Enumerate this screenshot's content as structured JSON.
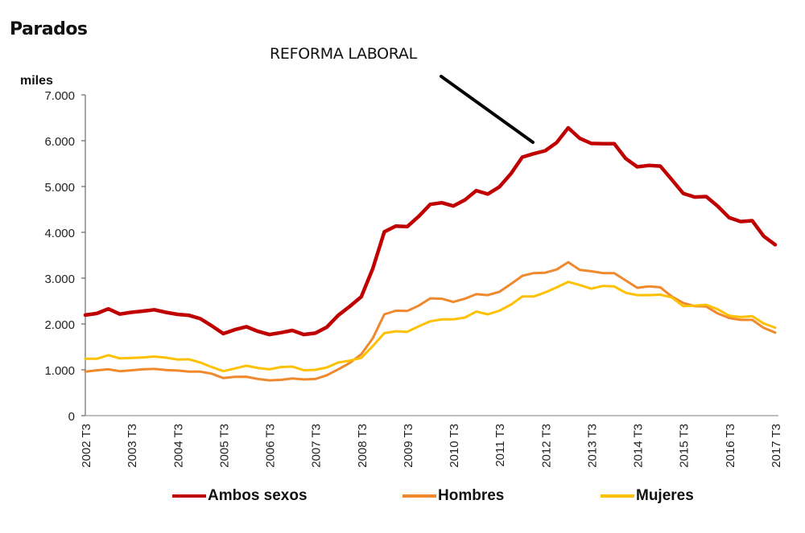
{
  "chart_data": {
    "type": "line",
    "title": "Parados",
    "ylabel": "miles",
    "xlabel": "",
    "ylim": [
      0,
      7000
    ],
    "yticks": [
      0,
      1000,
      2000,
      3000,
      4000,
      5000,
      6000,
      7000
    ],
    "ytick_labels": [
      "0",
      "1.000",
      "2.000",
      "3.000",
      "4.000",
      "5.000",
      "6.000",
      "7.000"
    ],
    "xtick_labels": [
      "2002 T3",
      "2003 T3",
      "2004 T3",
      "2005 T3",
      "2006 T3",
      "2007 T3",
      "2008 T3",
      "2009 T3",
      "2010 T3",
      "2011 T3",
      "2012 T3",
      "2013 T3",
      "2014 T3",
      "2015 T3",
      "2016 T3",
      "2017 T3"
    ],
    "x_period": "quarterly, 2002 T3 to 2017 T3",
    "grid": false,
    "legend_position": "bottom",
    "annotation": {
      "text": "REFORMA LABORAL",
      "points_to": "2012 T1"
    },
    "series": [
      {
        "name": "Ambos sexos",
        "color": "#c00000",
        "values": [
          2195,
          2230,
          2330,
          2215,
          2255,
          2280,
          2310,
          2255,
          2210,
          2190,
          2115,
          1960,
          1790,
          1875,
          1940,
          1840,
          1770,
          1810,
          1860,
          1770,
          1800,
          1930,
          2190,
          2385,
          2595,
          3210,
          4010,
          4135,
          4125,
          4350,
          4610,
          4645,
          4575,
          4705,
          4910,
          4835,
          4990,
          5275,
          5640,
          5715,
          5780,
          5960,
          6280,
          6050,
          5940,
          5935,
          5935,
          5610,
          5430,
          5460,
          5445,
          5150,
          4850,
          4770,
          4780,
          4570,
          4320,
          4235,
          4255,
          3915,
          3730
        ]
      },
      {
        "name": "Hombres",
        "color": "#f0882e",
        "values": [
          960,
          990,
          1010,
          970,
          990,
          1010,
          1020,
          995,
          985,
          960,
          960,
          915,
          820,
          845,
          850,
          800,
          770,
          780,
          810,
          790,
          800,
          880,
          1010,
          1150,
          1340,
          1690,
          2210,
          2290,
          2285,
          2400,
          2560,
          2550,
          2480,
          2550,
          2650,
          2630,
          2700,
          2870,
          3050,
          3110,
          3120,
          3190,
          3350,
          3180,
          3150,
          3110,
          3110,
          2950,
          2790,
          2820,
          2800,
          2600,
          2460,
          2390,
          2380,
          2230,
          2130,
          2090,
          2090,
          1915,
          1810
        ]
      },
      {
        "name": "Mujeres",
        "color": "#ffc000",
        "values": [
          1240,
          1240,
          1320,
          1250,
          1260,
          1270,
          1290,
          1265,
          1225,
          1230,
          1160,
          1060,
          970,
          1030,
          1090,
          1040,
          1010,
          1060,
          1070,
          990,
          1000,
          1050,
          1160,
          1200,
          1260,
          1520,
          1800,
          1840,
          1830,
          1950,
          2060,
          2100,
          2100,
          2140,
          2270,
          2210,
          2290,
          2420,
          2600,
          2600,
          2690,
          2800,
          2920,
          2850,
          2770,
          2830,
          2820,
          2680,
          2630,
          2630,
          2640,
          2580,
          2390,
          2400,
          2420,
          2320,
          2180,
          2150,
          2170,
          2010,
          1920
        ]
      }
    ]
  }
}
